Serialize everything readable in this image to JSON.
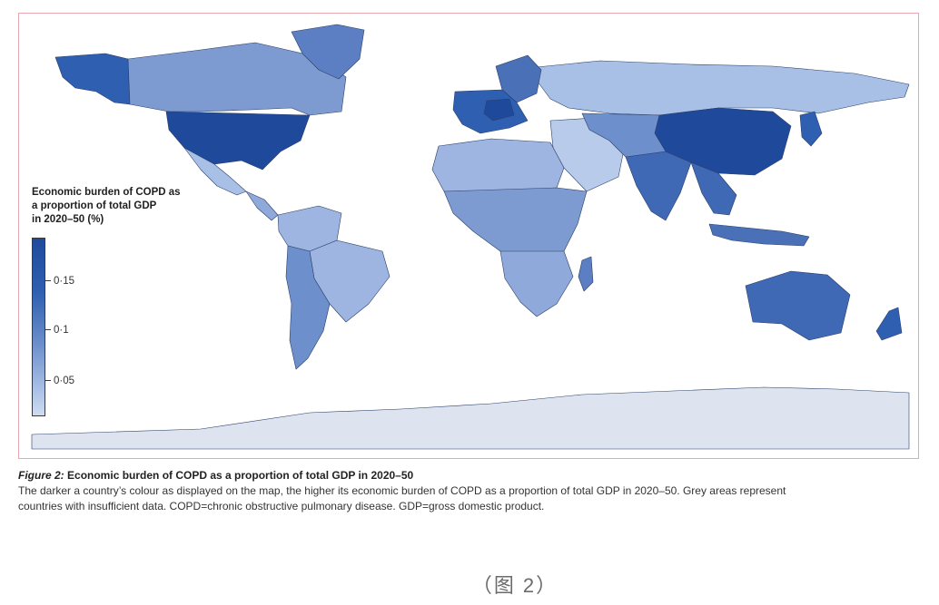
{
  "legend": {
    "title_lines": [
      "Economic burden of COPD as",
      "a proportion of total GDP",
      "in 2020–50 (%)"
    ],
    "ticks": [
      "0·15",
      "0·1",
      "0·05"
    ],
    "colors": {
      "high": "#1f4a9c",
      "mid": "#6d8fcb",
      "low": "#cfdcf2",
      "insufficient": "#dde4ef"
    }
  },
  "caption": {
    "figure_label": "Figure 2:",
    "figure_title": "Economic burden of COPD as a proportion of total GDP in 2020–50",
    "description_line1": "The darker a country’s colour as displayed on the map, the higher its economic burden of COPD as a proportion of total GDP in 2020–50. Grey areas represent",
    "description_line2": "countries with insufficient data. COPD=chronic obstructive pulmonary disease. GDP=gross domestic product."
  },
  "sub_caption": "（图 2）",
  "regions": [
    {
      "name": "Alaska",
      "color": "#2f5fb0"
    },
    {
      "name": "Canada",
      "color": "#7e9bd1"
    },
    {
      "name": "Greenland",
      "color": "#5b7fc2"
    },
    {
      "name": "USA",
      "color": "#1f4a9c"
    },
    {
      "name": "Mexico",
      "color": "#a9c0e6"
    },
    {
      "name": "Central America",
      "color": "#8ea9da"
    },
    {
      "name": "South America north",
      "color": "#9db5e0"
    },
    {
      "name": "Brazil",
      "color": "#9db5e0"
    },
    {
      "name": "Argentina/Chile",
      "color": "#6d8fcb"
    },
    {
      "name": "Russia",
      "color": "#a9c0e6"
    },
    {
      "name": "Scandinavia",
      "color": "#4a70b8"
    },
    {
      "name": "Western Europe",
      "color": "#2f5fb0"
    },
    {
      "name": "Germany",
      "color": "#1f4a9c"
    },
    {
      "name": "Middle East",
      "color": "#b8cbea"
    },
    {
      "name": "North Africa",
      "color": "#9db5e0"
    },
    {
      "name": "Sub-Saharan Africa",
      "color": "#7e9bd1"
    },
    {
      "name": "Southern Africa",
      "color": "#8ea9da"
    },
    {
      "name": "Madagascar",
      "color": "#5b7fc2"
    },
    {
      "name": "India",
      "color": "#3f68b5"
    },
    {
      "name": "China",
      "color": "#1f4a9c"
    },
    {
      "name": "Central Asia",
      "color": "#6d8fcb"
    },
    {
      "name": "Southeast Asia",
      "color": "#3f68b5"
    },
    {
      "name": "Indonesia",
      "color": "#4a70b8"
    },
    {
      "name": "Japan",
      "color": "#2f5fb0"
    },
    {
      "name": "Australia",
      "color": "#3f68b5"
    },
    {
      "name": "New Zealand",
      "color": "#2f5fb0"
    },
    {
      "name": "Antarctica",
      "color": "#dde4ef"
    }
  ]
}
